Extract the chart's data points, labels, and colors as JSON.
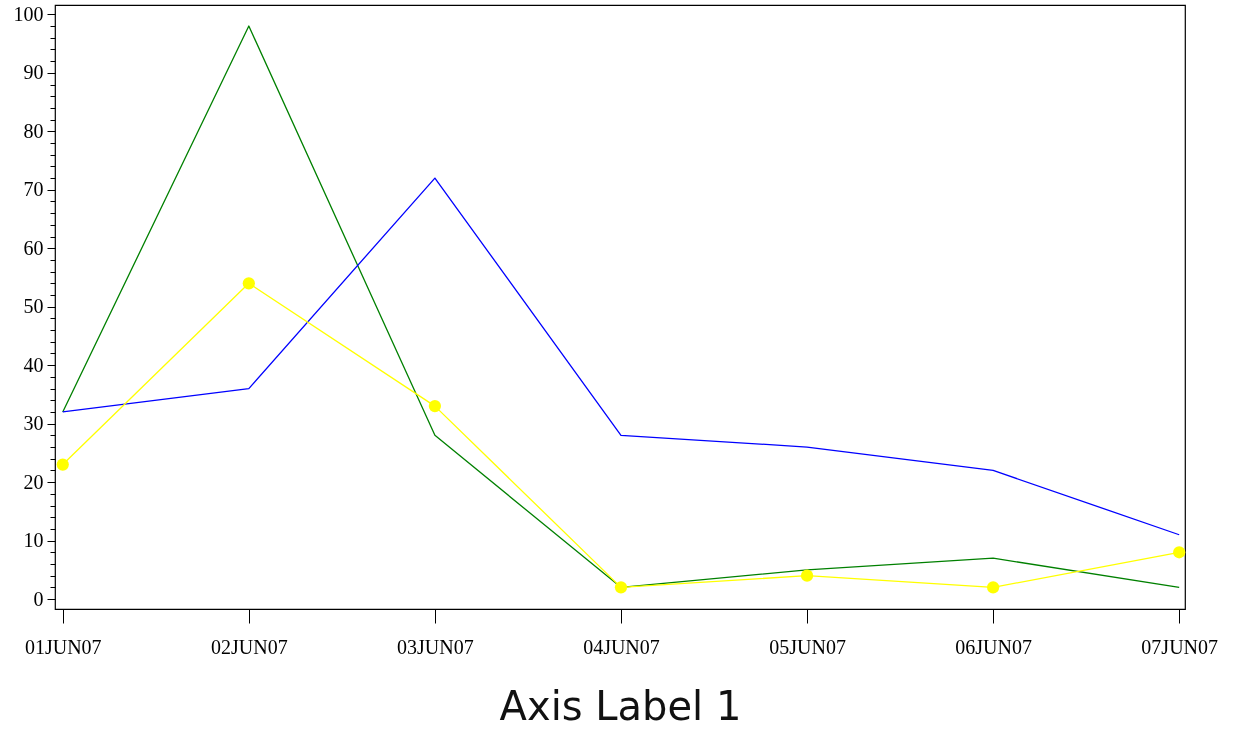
{
  "chart_data": {
    "type": "line",
    "xlabel": "Axis Label 1",
    "x": [
      "--06-01",
      "--06-02",
      "--06-03",
      "--06-04",
      "--06-05",
      "--06-06",
      "--06-07"
    ],
    "series": [
      {
        "color": "#008000",
        "marker": "none",
        "values": [
          32,
          98,
          28,
          2,
          5,
          7,
          2
        ]
      },
      {
        "color": "#0000ff",
        "marker": "none",
        "values": [
          32,
          36,
          72,
          28,
          26,
          22,
          11
        ]
      },
      {
        "color": "#ffff00",
        "marker": "circle",
        "values": [
          23,
          54,
          33,
          2,
          4,
          2,
          8
        ]
      }
    ],
    "xlim": [
      "--05-31T23:00",
      "--06-07T00:45"
    ],
    "xticks": [
      {
        "value": "--06-01",
        "label": "01JUN07"
      },
      {
        "value": "--06-02",
        "label": "02JUN07"
      },
      {
        "value": "--06-03",
        "label": "03JUN07"
      },
      {
        "value": "--06-04",
        "label": "04JUN07"
      },
      {
        "value": "--06-05",
        "label": "05JUN07"
      },
      {
        "value": "--06-06",
        "label": "06JUN07"
      },
      {
        "value": "--06-07",
        "label": "07JUN07"
      }
    ],
    "ylim": [
      -1.7,
      101.6
    ],
    "yticks": [
      0,
      {
        "value": 2,
        "label": null
      },
      {
        "value": 4,
        "label": null
      },
      {
        "value": 6,
        "label": null
      },
      {
        "value": 8,
        "label": null
      },
      10,
      {
        "value": 12,
        "label": null
      },
      {
        "value": 14,
        "label": null
      },
      {
        "value": 16,
        "label": null
      },
      {
        "value": 18,
        "label": null
      },
      20,
      {
        "value": 22,
        "label": null
      },
      {
        "value": 24,
        "label": null
      },
      {
        "value": 26,
        "label": null
      },
      {
        "value": 28,
        "label": null
      },
      30,
      {
        "value": 32,
        "label": null
      },
      {
        "value": 34,
        "label": null
      },
      {
        "value": 36,
        "label": null
      },
      {
        "value": 38,
        "label": null
      },
      40,
      {
        "value": 42,
        "label": null
      },
      {
        "value": 44,
        "label": null
      },
      {
        "value": 46,
        "label": null
      },
      {
        "value": 48,
        "label": null
      },
      50,
      {
        "value": 52,
        "label": null
      },
      {
        "value": 54,
        "label": null
      },
      {
        "value": 56,
        "label": null
      },
      {
        "value": 58,
        "label": null
      },
      60,
      {
        "value": 62,
        "label": null
      },
      {
        "value": 64,
        "label": null
      },
      {
        "value": 66,
        "label": null
      },
      {
        "value": 68,
        "label": null
      },
      70,
      {
        "value": 72,
        "label": null
      },
      {
        "value": 74,
        "label": null
      },
      {
        "value": 76,
        "label": null
      },
      {
        "value": 78,
        "label": null
      },
      80,
      {
        "value": 82,
        "label": null
      },
      {
        "value": 84,
        "label": null
      },
      {
        "value": 86,
        "label": null
      },
      {
        "value": 88,
        "label": null
      },
      90,
      {
        "value": 92,
        "label": null
      },
      {
        "value": 94,
        "label": null
      },
      {
        "value": 96,
        "label": null
      },
      {
        "value": 98,
        "label": null
      },
      100
    ],
    "grid": false
  }
}
